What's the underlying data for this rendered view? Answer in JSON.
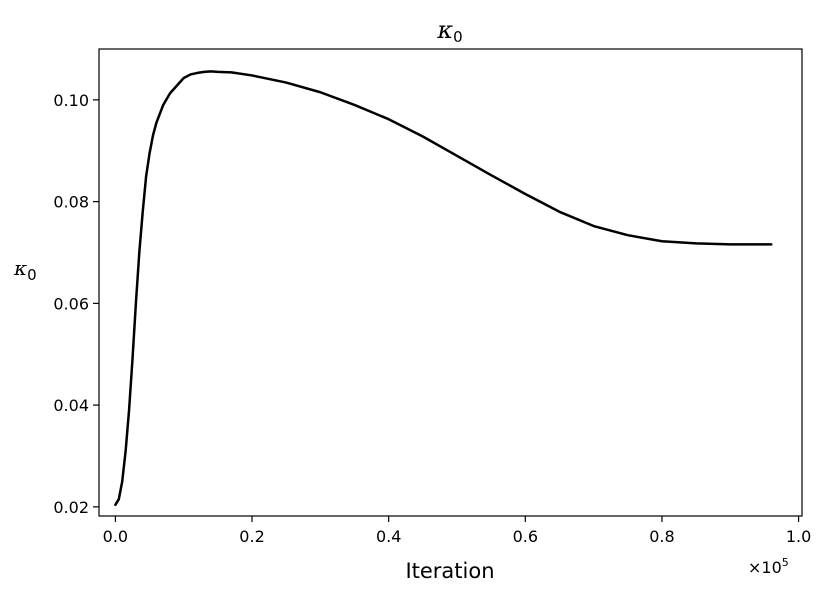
{
  "chart_data": {
    "type": "line",
    "title": {
      "symbol": "κ",
      "subscript": "0"
    },
    "xlabel": "Iteration",
    "ylabel": {
      "symbol": "κ",
      "subscript": "0"
    },
    "x_multiplier": {
      "base": "×10",
      "exponent": "5"
    },
    "xlim": [
      -0.024,
      1.005
    ],
    "ylim": [
      0.0182,
      0.11
    ],
    "x_ticks": [
      0.0,
      0.2,
      0.4,
      0.6,
      0.8,
      1.0
    ],
    "x_tick_labels": [
      "0.0",
      "0.2",
      "0.4",
      "0.6",
      "0.8",
      "1.0"
    ],
    "y_ticks": [
      0.02,
      0.04,
      0.06,
      0.08,
      0.1
    ],
    "y_tick_labels": [
      "0.02",
      "0.04",
      "0.06",
      "0.08",
      "0.10"
    ],
    "grid": false,
    "line_color": "#000000",
    "series": [
      {
        "x": [
          0.0,
          0.005,
          0.01,
          0.015,
          0.02,
          0.025,
          0.03,
          0.035,
          0.04,
          0.045,
          0.05,
          0.055,
          0.06,
          0.07,
          0.08,
          0.09,
          0.1,
          0.11,
          0.12,
          0.13,
          0.14,
          0.15,
          0.17,
          0.2,
          0.25,
          0.3,
          0.35,
          0.4,
          0.45,
          0.5,
          0.55,
          0.6,
          0.65,
          0.7,
          0.75,
          0.8,
          0.85,
          0.9,
          0.96
        ],
        "y": [
          0.0204,
          0.0215,
          0.025,
          0.031,
          0.039,
          0.049,
          0.06,
          0.07,
          0.078,
          0.085,
          0.0895,
          0.093,
          0.0955,
          0.099,
          0.1013,
          0.1028,
          0.1043,
          0.105,
          0.1053,
          0.1055,
          0.1056,
          0.1055,
          0.1054,
          0.1048,
          0.1034,
          0.1015,
          0.099,
          0.0962,
          0.0928,
          0.089,
          0.0852,
          0.0815,
          0.078,
          0.0752,
          0.0734,
          0.0722,
          0.0718,
          0.0716,
          0.0716
        ]
      }
    ]
  }
}
